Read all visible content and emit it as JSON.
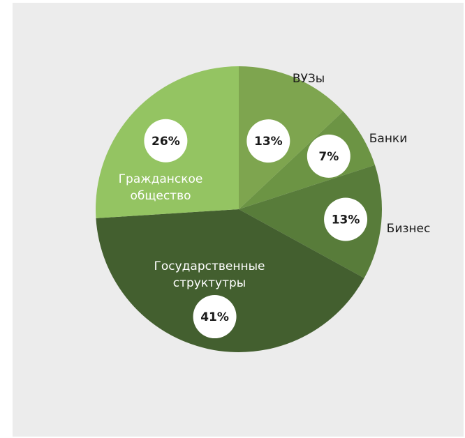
{
  "chart_data": {
    "type": "pie",
    "title": "",
    "slices": [
      {
        "label": "ВУЗы",
        "value": 13,
        "value_label": "13%",
        "color": "#7ea54f"
      },
      {
        "label": "Банки",
        "value": 7,
        "value_label": "7%",
        "color": "#6c9444"
      },
      {
        "label": "Бизнес",
        "value": 13,
        "value_label": "13%",
        "color": "#587c3a"
      },
      {
        "label": "Государственные структутры",
        "value": 41,
        "value_label": "41%",
        "color": "#435f2f"
      },
      {
        "label": "Гражданское общество",
        "value": 26,
        "value_label": "26%",
        "color": "#94c462"
      }
    ],
    "start_angle_deg": 0,
    "direction": "clockwise",
    "label_colors": {
      "inside": "#ffffff",
      "outside": "#1a1a1a"
    }
  }
}
